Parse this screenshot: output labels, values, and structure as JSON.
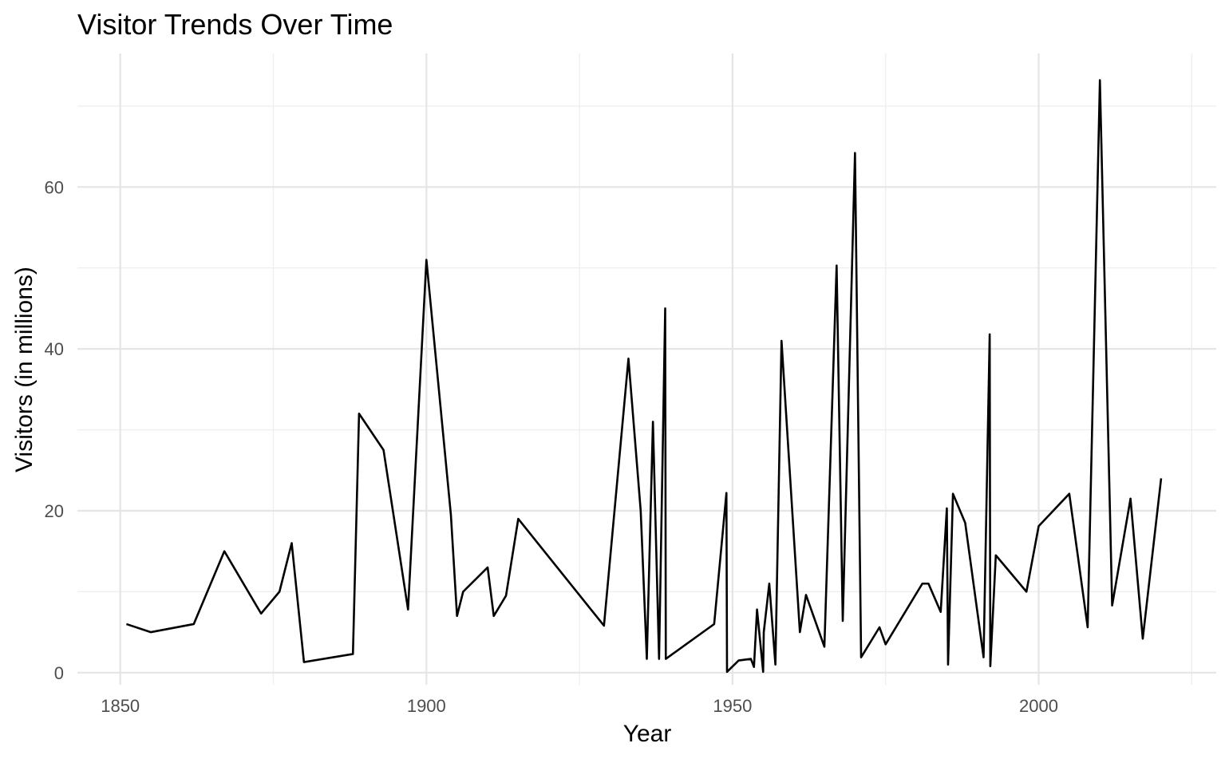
{
  "chart_data": {
    "type": "line",
    "title": "Visitor Trends Over Time",
    "xlabel": "Year",
    "ylabel": "Visitors (in millions)",
    "xlim": [
      1843,
      2029
    ],
    "ylim": [
      -1.5,
      76.5
    ],
    "x_ticks": [
      1850,
      1900,
      1950,
      2000
    ],
    "y_ticks": [
      0,
      20,
      40,
      60
    ],
    "x_minor": [
      1875,
      1925,
      1975,
      2025
    ],
    "y_minor": [
      10,
      30,
      50,
      70
    ],
    "grid": true,
    "legend": "none",
    "line_color": "#000000",
    "series": [
      {
        "x": [
          1851,
          1855,
          1862,
          1867,
          1873,
          1876,
          1878,
          1880,
          1888,
          1889,
          1893,
          1897,
          1900,
          1904,
          1905,
          1906,
          1910,
          1911,
          1913,
          1915,
          1929,
          1933,
          1935,
          1936,
          1937,
          1938,
          1939,
          1939.1,
          1947,
          1949,
          1949.1,
          1951,
          1953,
          1953.5,
          1954,
          1955,
          1955.1,
          1956,
          1957,
          1958,
          1961,
          1962,
          1965,
          1967,
          1968,
          1970,
          1971,
          1974,
          1975,
          1981,
          1982,
          1984,
          1985,
          1985.2,
          1986,
          1988,
          1991,
          1992,
          1992.1,
          1993,
          1998,
          2000,
          2005,
          2008,
          2010,
          2012,
          2015,
          2017,
          2020
        ],
        "values": [
          6.0,
          5.0,
          6.0,
          15.0,
          7.3,
          10.0,
          16.0,
          1.3,
          2.3,
          32.0,
          27.5,
          7.8,
          51.0,
          19.5,
          7.0,
          10.0,
          13.0,
          7.0,
          9.5,
          19.0,
          5.8,
          38.8,
          20.0,
          1.7,
          31.0,
          1.7,
          45.0,
          1.7,
          6.0,
          22.2,
          0.1,
          1.5,
          1.7,
          0.7,
          7.8,
          0.1,
          5.0,
          11.0,
          1.0,
          41.0,
          5.0,
          9.6,
          3.2,
          50.3,
          6.4,
          64.2,
          1.9,
          5.6,
          3.5,
          11.0,
          11.0,
          7.5,
          20.3,
          1.0,
          22.1,
          18.5,
          1.9,
          41.8,
          0.8,
          14.5,
          10.0,
          18.1,
          22.1,
          5.6,
          73.2,
          8.3,
          21.5,
          4.2,
          24.0
        ]
      }
    ]
  }
}
